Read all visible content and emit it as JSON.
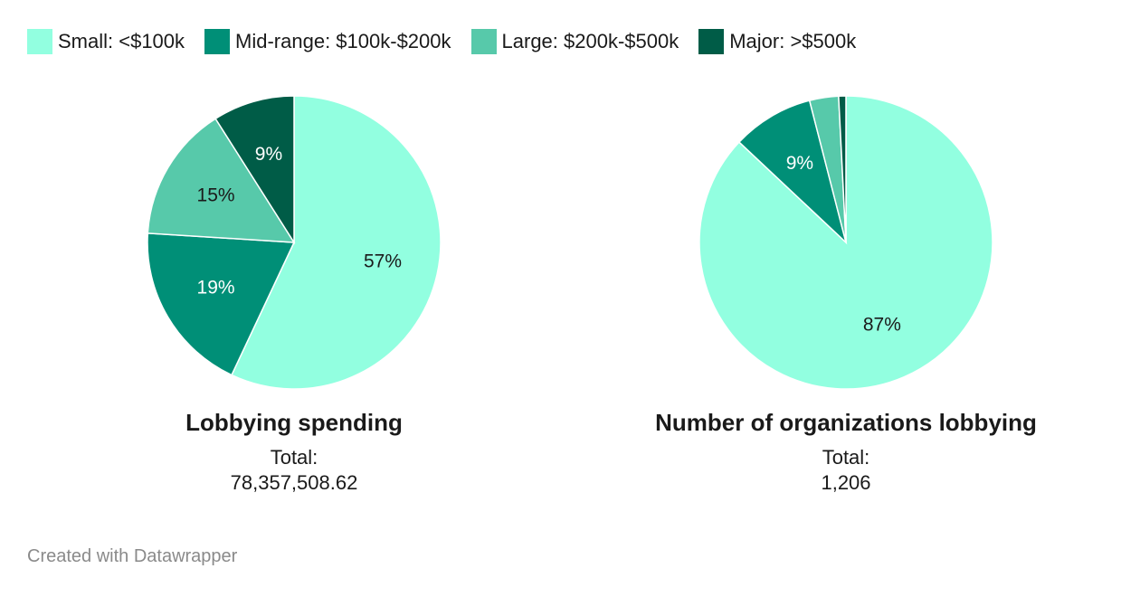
{
  "legend": [
    {
      "label": "Small: <$100k",
      "color": "#92ffe0"
    },
    {
      "label": "Mid-range: $100k-$200k",
      "color": "#008f77"
    },
    {
      "label": "Large: $200k-$500k",
      "color": "#57c9aa"
    },
    {
      "label": "Major: >$500k",
      "color": "#005c47"
    }
  ],
  "chart_data": [
    {
      "type": "pie",
      "title": "Lobbying spending",
      "subtitle_label": "Total:",
      "subtitle_value": "78,357,508.62",
      "categories": [
        "Small: <$100k",
        "Mid-range: $100k-$200k",
        "Large: $200k-$500k",
        "Major: >$500k"
      ],
      "values": [
        57,
        19,
        15,
        9
      ],
      "labels": [
        "57%",
        "19%",
        "15%",
        "9%"
      ],
      "colors": [
        "#92ffe0",
        "#008f77",
        "#57c9aa",
        "#005c47"
      ],
      "label_colors": [
        "#1a1a1a",
        "#ffffff",
        "#1a1a1a",
        "#ffffff"
      ]
    },
    {
      "type": "pie",
      "title": "Number of organizations lobbying",
      "subtitle_label": "Total:",
      "subtitle_value": "1,206",
      "categories": [
        "Small: <$100k",
        "Mid-range: $100k-$200k",
        "Large: $200k-$500k",
        "Major: >$500k"
      ],
      "values": [
        87,
        9,
        3.2,
        0.8
      ],
      "labels": [
        "87%",
        "9%",
        "",
        ""
      ],
      "colors": [
        "#92ffe0",
        "#008f77",
        "#57c9aa",
        "#005c47"
      ],
      "label_colors": [
        "#1a1a1a",
        "#ffffff",
        "#1a1a1a",
        "#ffffff"
      ]
    }
  ],
  "footer": {
    "credit": "Created with Datawrapper"
  }
}
